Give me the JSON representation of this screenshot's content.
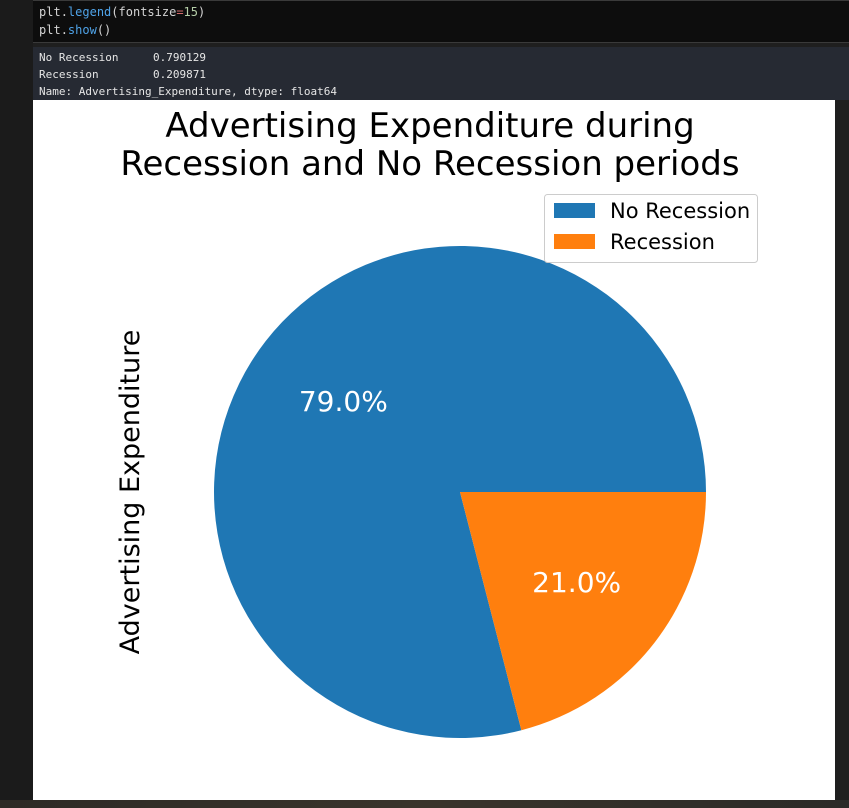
{
  "code_cell": {
    "lines": [
      {
        "object": "plt",
        "method": "legend",
        "arg_name": "fontsize",
        "arg_value": "15"
      },
      {
        "object": "plt",
        "method": "show"
      }
    ]
  },
  "output": {
    "rows": [
      {
        "label": "No Recession",
        "value": "0.790129"
      },
      {
        "label": "Recession",
        "value": "0.209871"
      }
    ],
    "footer": "Name: Advertising_Expenditure, dtype: float64"
  },
  "chart_data": {
    "type": "pie",
    "title_lines": [
      "Advertising Expenditure during",
      "Recession and No Recession periods"
    ],
    "ylabel": "Advertising Expenditure",
    "categories": [
      "No Recession",
      "Recession"
    ],
    "values": [
      0.790129,
      0.209871
    ],
    "autopct_labels": [
      "79.0%",
      "21.0%"
    ],
    "colors": [
      "#1f77b4",
      "#ff7f0e"
    ],
    "legend": {
      "placement": "upper-right",
      "entries": [
        "No Recession",
        "Recession"
      ]
    }
  },
  "colors": {
    "code_background": "#0d0d0d",
    "output_background": "#262a33",
    "figure_background": "#ffffff"
  }
}
